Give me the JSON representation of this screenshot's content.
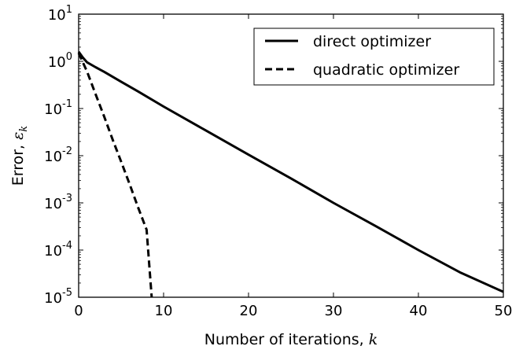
{
  "chart_data": {
    "type": "line",
    "xlabel": "Number of iterations, ",
    "xlabel_var": "k",
    "ylabel": "Error, ",
    "ylabel_var": "ε",
    "ylabel_sub": "k",
    "xlim": [
      0,
      50
    ],
    "ylim": [
      1e-05,
      10
    ],
    "yscale": "log",
    "grid": false,
    "legend_position": "top-right",
    "x_ticks": [
      0,
      10,
      20,
      30,
      40,
      50
    ],
    "x_tick_labels": [
      "0",
      "10",
      "20",
      "30",
      "40",
      "50"
    ],
    "y_ticks": [
      {
        "value": 10,
        "base": "10",
        "exp": "1"
      },
      {
        "value": 1,
        "base": "10",
        "exp": "0"
      },
      {
        "value": 0.1,
        "base": "10",
        "exp": "-1"
      },
      {
        "value": 0.01,
        "base": "10",
        "exp": "-2"
      },
      {
        "value": 0.001,
        "base": "10",
        "exp": "-3"
      },
      {
        "value": 0.0001,
        "base": "10",
        "exp": "-4"
      },
      {
        "value": 1e-05,
        "base": "10",
        "exp": "-5"
      }
    ],
    "series": [
      {
        "name": "direct optimizer",
        "style": "solid",
        "color": "#000000",
        "x": [
          0,
          0.5,
          1,
          2,
          3,
          5,
          7,
          10,
          15,
          20,
          25,
          30,
          35,
          40,
          45,
          50
        ],
        "y": [
          1.6,
          1.2,
          0.95,
          0.75,
          0.6,
          0.37,
          0.23,
          0.11,
          0.034,
          0.0105,
          0.0033,
          0.001,
          0.00032,
          0.0001,
          3.3e-05,
          1.3e-05
        ]
      },
      {
        "name": "quadratic optimizer",
        "style": "dashed",
        "color": "#000000",
        "x": [
          0,
          1,
          2,
          3,
          4,
          5,
          6,
          7,
          8,
          8.6
        ],
        "y": [
          1.5,
          0.6,
          0.2,
          0.068,
          0.022,
          0.0075,
          0.0025,
          0.0008,
          0.00027,
          1e-05
        ]
      }
    ]
  }
}
